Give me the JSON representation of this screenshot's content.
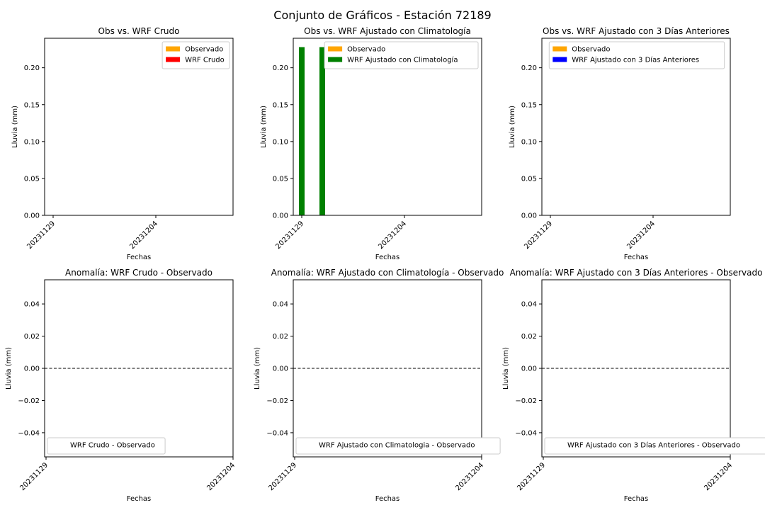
{
  "title": "Conjunto de Gráficos - Estación 72189",
  "colors": {
    "observado": "#ffa500",
    "wrf_crudo": "#ff0000",
    "wrf_clim": "#008000",
    "wrf_3dias": "#0000ff",
    "zero_line": "#000000"
  },
  "chart_data": [
    {
      "type": "bar",
      "title": "Obs vs. WRF Crudo",
      "xlabel": "Fechas",
      "ylabel": "Lluvia (mm)",
      "x_ticks": [
        "20231129",
        "20231204"
      ],
      "ylim": [
        0,
        0.24
      ],
      "y_ticks": [
        "0.00",
        "0.05",
        "0.10",
        "0.15",
        "0.20"
      ],
      "legend": "upper-right",
      "series": [
        {
          "name": "Observado",
          "color_key": "observado",
          "values": []
        },
        {
          "name": "WRF Crudo",
          "color_key": "wrf_crudo",
          "values": []
        }
      ]
    },
    {
      "type": "bar",
      "title": "Obs vs. WRF Ajustado con Climatología",
      "xlabel": "Fechas",
      "ylabel": "Lluvia (mm)",
      "x_ticks": [
        "20231129",
        "20231204"
      ],
      "ylim": [
        0,
        0.24
      ],
      "y_ticks": [
        "0.00",
        "0.05",
        "0.10",
        "0.15",
        "0.20"
      ],
      "legend": "upper-right",
      "series": [
        {
          "name": "Observado",
          "color_key": "observado",
          "values": []
        },
        {
          "name": "WRF Ajustado con Climatología",
          "color_key": "wrf_clim",
          "values": [
            {
              "date": "20231129",
              "value": 0.228
            },
            {
              "date": "20231130",
              "value": 0.228
            }
          ]
        }
      ]
    },
    {
      "type": "bar",
      "title": "Obs vs. WRF Ajustado con 3 Días Anteriores",
      "xlabel": "Fechas",
      "ylabel": "Lluvia (mm)",
      "x_ticks": [
        "20231129",
        "20231204"
      ],
      "ylim": [
        0,
        0.24
      ],
      "y_ticks": [
        "0.00",
        "0.05",
        "0.10",
        "0.15",
        "0.20"
      ],
      "legend": "upper-center",
      "series": [
        {
          "name": "Observado",
          "color_key": "observado",
          "values": []
        },
        {
          "name": "WRF Ajustado con 3 Días Anteriores",
          "color_key": "wrf_3dias",
          "values": []
        }
      ]
    },
    {
      "type": "line",
      "title": "Anomalía: WRF Crudo - Observado",
      "xlabel": "Fechas",
      "ylabel": "Lluvia (mm)",
      "x_ticks": [
        "20231129",
        "20231204"
      ],
      "ylim": [
        -0.055,
        0.055
      ],
      "y_ticks": [
        "0.04",
        "0.02",
        "0.00",
        "−0.02",
        "−0.04"
      ],
      "y_tick_values": [
        0.04,
        0.02,
        0,
        -0.02,
        -0.04
      ],
      "zero_line": true,
      "legend": "lower-left",
      "series": [
        {
          "name": "WRF Crudo - Observado",
          "values": []
        }
      ]
    },
    {
      "type": "line",
      "title": "Anomalía: WRF Ajustado con Climatología - Observado",
      "xlabel": "Fechas",
      "ylabel": "Lluvia (mm)",
      "x_ticks": [
        "20231129",
        "20231204"
      ],
      "ylim": [
        -0.055,
        0.055
      ],
      "y_ticks": [
        "0.04",
        "0.02",
        "0.00",
        "−0.02",
        "−0.04"
      ],
      "y_tick_values": [
        0.04,
        0.02,
        0,
        -0.02,
        -0.04
      ],
      "zero_line": true,
      "legend": "lower-left",
      "series": [
        {
          "name": "WRF Ajustado con Climatologia - Observado",
          "values": []
        }
      ]
    },
    {
      "type": "line",
      "title": "Anomalía: WRF Ajustado con 3 Días Anteriores - Observado",
      "xlabel": "Fechas",
      "ylabel": "Lluvia (mm)",
      "x_ticks": [
        "20231129",
        "20231204"
      ],
      "ylim": [
        -0.055,
        0.055
      ],
      "y_ticks": [
        "0.04",
        "0.02",
        "0.00",
        "−0.02",
        "−0.04"
      ],
      "y_tick_values": [
        0.04,
        0.02,
        0,
        -0.02,
        -0.04
      ],
      "zero_line": true,
      "legend": "lower-left",
      "series": [
        {
          "name": "WRF Ajustado con 3 Días Anteriores - Observado",
          "values": []
        }
      ]
    }
  ]
}
